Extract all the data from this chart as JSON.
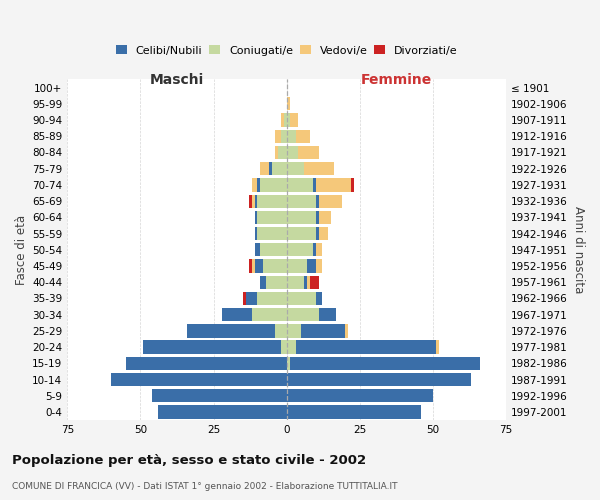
{
  "age_groups": [
    "0-4",
    "5-9",
    "10-14",
    "15-19",
    "20-24",
    "25-29",
    "30-34",
    "35-39",
    "40-44",
    "45-49",
    "50-54",
    "55-59",
    "60-64",
    "65-69",
    "70-74",
    "75-79",
    "80-84",
    "85-89",
    "90-94",
    "95-99",
    "100+"
  ],
  "birth_years": [
    "1997-2001",
    "1992-1996",
    "1987-1991",
    "1982-1986",
    "1977-1981",
    "1972-1976",
    "1967-1971",
    "1962-1966",
    "1957-1961",
    "1952-1956",
    "1947-1951",
    "1942-1946",
    "1937-1941",
    "1932-1936",
    "1927-1931",
    "1922-1926",
    "1917-1921",
    "1912-1916",
    "1907-1911",
    "1902-1906",
    "≤ 1901"
  ],
  "maschi": {
    "coniugati": [
      0,
      0,
      0,
      0,
      2,
      4,
      12,
      10,
      7,
      8,
      9,
      10,
      10,
      10,
      9,
      5,
      3,
      2,
      1,
      0,
      0
    ],
    "celibi": [
      44,
      46,
      60,
      55,
      47,
      30,
      10,
      4,
      2,
      3,
      2,
      1,
      1,
      1,
      1,
      1,
      0,
      0,
      0,
      0,
      0
    ],
    "vedovi": [
      0,
      0,
      0,
      0,
      0,
      0,
      0,
      0,
      0,
      1,
      0,
      0,
      0,
      1,
      2,
      3,
      1,
      2,
      1,
      0,
      0
    ],
    "divorziati": [
      0,
      0,
      0,
      0,
      0,
      0,
      0,
      1,
      0,
      1,
      0,
      0,
      0,
      1,
      0,
      0,
      0,
      0,
      0,
      0,
      0
    ]
  },
  "femmine": {
    "coniugate": [
      0,
      0,
      0,
      1,
      3,
      5,
      11,
      10,
      6,
      7,
      9,
      10,
      10,
      10,
      9,
      6,
      4,
      3,
      1,
      0,
      0
    ],
    "nubili": [
      46,
      50,
      63,
      65,
      48,
      15,
      6,
      2,
      1,
      3,
      1,
      1,
      1,
      1,
      1,
      0,
      0,
      0,
      0,
      0,
      0
    ],
    "vedove": [
      0,
      0,
      0,
      0,
      1,
      1,
      0,
      0,
      1,
      2,
      2,
      3,
      4,
      8,
      12,
      10,
      7,
      5,
      3,
      1,
      0
    ],
    "divorziate": [
      0,
      0,
      0,
      0,
      0,
      0,
      0,
      0,
      3,
      0,
      0,
      0,
      0,
      0,
      1,
      0,
      0,
      0,
      0,
      0,
      0
    ]
  },
  "colors": {
    "celibi_nubili": "#3a6ea8",
    "coniugati": "#c5d9a0",
    "vedovi": "#f5c87a",
    "divorziati": "#cc2222"
  },
  "xlim": 75,
  "title": "Popolazione per età, sesso e stato civile - 2002",
  "subtitle": "COMUNE DI FRANCICA (VV) - Dati ISTAT 1° gennaio 2002 - Elaborazione TUTTITALIA.IT",
  "ylabel_left": "Fasce di età",
  "ylabel_right": "Anni di nascita",
  "xlabel_left": "Maschi",
  "xlabel_right": "Femmine",
  "bg_color": "#f4f4f4",
  "plot_bg": "#ffffff"
}
